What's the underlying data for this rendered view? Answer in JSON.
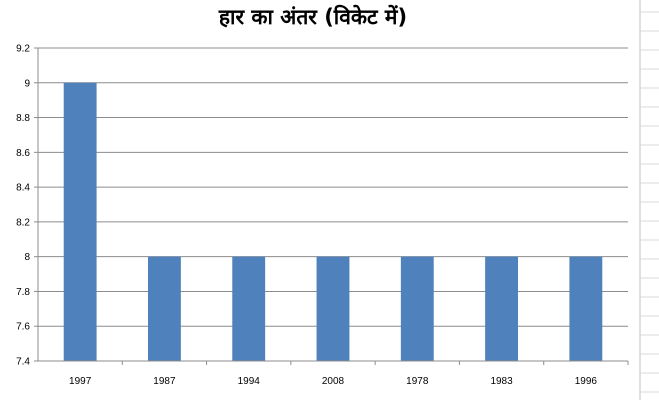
{
  "chart_data": {
    "type": "bar",
    "title": "हार का अंतर (विकेट में)",
    "categories": [
      "1997",
      "1987",
      "1994",
      "2008",
      "1978",
      "1983",
      "1996"
    ],
    "values": [
      9,
      8,
      8,
      8,
      8,
      8,
      8
    ],
    "ylim": [
      7.4,
      9.2
    ],
    "y_ticks": [
      "7.4",
      "7.6",
      "7.8",
      "8",
      "8.2",
      "8.4",
      "8.6",
      "8.8",
      "9",
      "9.2"
    ],
    "xlabel": "",
    "ylabel": "",
    "grid": true,
    "legend": "none",
    "bar_color": "#4f81bd"
  }
}
